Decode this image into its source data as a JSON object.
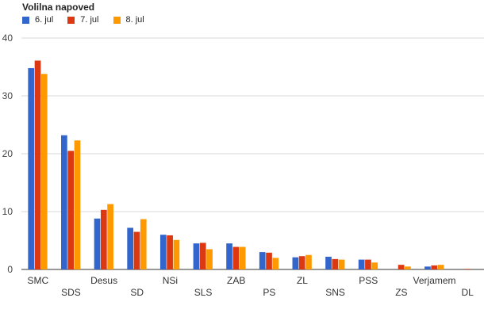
{
  "chart_data": {
    "type": "bar",
    "title": "Volilna napoved",
    "categories": [
      "SMC",
      "SDS",
      "Desus",
      "SD",
      "NSi",
      "SLS",
      "ZAB",
      "PS",
      "ZL",
      "SNS",
      "PSS",
      "ZS",
      "Verjamem",
      "DL"
    ],
    "series": [
      {
        "name": "6. jul",
        "color": "#3366cc",
        "values": [
          34.8,
          23.2,
          8.8,
          7.2,
          6.0,
          4.5,
          4.5,
          3.0,
          2.1,
          2.2,
          1.7,
          0.0,
          0.5,
          0.0
        ]
      },
      {
        "name": "7. jul",
        "color": "#dc3912",
        "values": [
          36.1,
          20.5,
          10.3,
          6.5,
          5.9,
          4.6,
          3.9,
          2.9,
          2.3,
          1.8,
          1.7,
          0.8,
          0.7,
          0.1
        ]
      },
      {
        "name": "8. jul",
        "color": "#ff9900",
        "values": [
          33.8,
          22.3,
          11.3,
          8.7,
          5.1,
          3.5,
          3.9,
          2.0,
          2.5,
          1.7,
          1.2,
          0.5,
          0.8,
          0.0
        ]
      }
    ],
    "yticks": [
      0,
      10,
      20,
      30,
      40
    ],
    "ylim": [
      0,
      40
    ],
    "xlabel": "",
    "ylabel": "",
    "grid": true,
    "legend": "top-left"
  }
}
